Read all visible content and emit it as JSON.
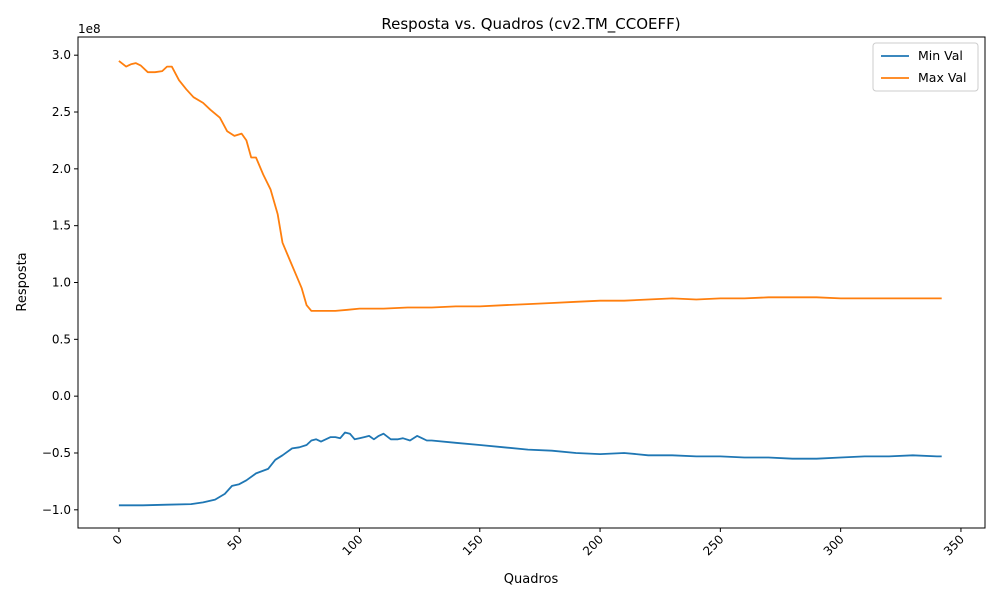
{
  "chart_data": {
    "type": "line",
    "title": "Resposta vs. Quadros (cv2.TM_CCOEFF)",
    "xlabel": "Quadros",
    "ylabel": "Resposta",
    "y_offset_label": "1e8",
    "xlim": [
      -17,
      360
    ],
    "ylim": [
      -1.16,
      3.16
    ],
    "y_scale_factor": 100000000,
    "xticks": [
      0,
      50,
      100,
      150,
      200,
      250,
      300,
      350
    ],
    "xtick_rotation": 45,
    "yticks": [
      -1.0,
      -0.5,
      0.0,
      0.5,
      1.0,
      1.5,
      2.0,
      2.5,
      3.0
    ],
    "ytick_labels": [
      "−1.0",
      "−0.5",
      "0.0",
      "0.5",
      "1.0",
      "1.5",
      "2.0",
      "2.5",
      "3.0"
    ],
    "grid": false,
    "legend_position": "top-right",
    "series": [
      {
        "name": "Min Val",
        "color": "#1f77b4",
        "points": [
          [
            0,
            -0.96
          ],
          [
            10,
            -0.96
          ],
          [
            20,
            -0.955
          ],
          [
            30,
            -0.95
          ],
          [
            35,
            -0.935
          ],
          [
            40,
            -0.91
          ],
          [
            44,
            -0.86
          ],
          [
            47,
            -0.79
          ],
          [
            50,
            -0.775
          ],
          [
            53,
            -0.74
          ],
          [
            57,
            -0.68
          ],
          [
            62,
            -0.64
          ],
          [
            65,
            -0.56
          ],
          [
            68,
            -0.52
          ],
          [
            72,
            -0.46
          ],
          [
            75,
            -0.45
          ],
          [
            78,
            -0.43
          ],
          [
            80,
            -0.39
          ],
          [
            82,
            -0.38
          ],
          [
            84,
            -0.4
          ],
          [
            86,
            -0.38
          ],
          [
            88,
            -0.36
          ],
          [
            90,
            -0.36
          ],
          [
            92,
            -0.37
          ],
          [
            94,
            -0.32
          ],
          [
            96,
            -0.33
          ],
          [
            98,
            -0.38
          ],
          [
            100,
            -0.37
          ],
          [
            102,
            -0.36
          ],
          [
            104,
            -0.35
          ],
          [
            106,
            -0.38
          ],
          [
            108,
            -0.35
          ],
          [
            110,
            -0.33
          ],
          [
            113,
            -0.38
          ],
          [
            116,
            -0.38
          ],
          [
            118,
            -0.37
          ],
          [
            121,
            -0.39
          ],
          [
            124,
            -0.35
          ],
          [
            126,
            -0.37
          ],
          [
            128,
            -0.39
          ],
          [
            130,
            -0.39
          ],
          [
            140,
            -0.41
          ],
          [
            150,
            -0.43
          ],
          [
            160,
            -0.45
          ],
          [
            170,
            -0.47
          ],
          [
            180,
            -0.48
          ],
          [
            190,
            -0.5
          ],
          [
            200,
            -0.51
          ],
          [
            210,
            -0.5
          ],
          [
            215,
            -0.51
          ],
          [
            220,
            -0.52
          ],
          [
            230,
            -0.52
          ],
          [
            240,
            -0.53
          ],
          [
            250,
            -0.53
          ],
          [
            260,
            -0.54
          ],
          [
            270,
            -0.54
          ],
          [
            280,
            -0.55
          ],
          [
            290,
            -0.55
          ],
          [
            300,
            -0.54
          ],
          [
            310,
            -0.53
          ],
          [
            320,
            -0.53
          ],
          [
            330,
            -0.52
          ],
          [
            340,
            -0.53
          ],
          [
            342,
            -0.53
          ]
        ]
      },
      {
        "name": "Max Val",
        "color": "#ff7f0e",
        "points": [
          [
            0,
            2.95
          ],
          [
            3,
            2.9
          ],
          [
            5,
            2.92
          ],
          [
            7,
            2.93
          ],
          [
            9,
            2.91
          ],
          [
            12,
            2.85
          ],
          [
            15,
            2.85
          ],
          [
            18,
            2.86
          ],
          [
            20,
            2.9
          ],
          [
            22,
            2.9
          ],
          [
            25,
            2.78
          ],
          [
            28,
            2.7
          ],
          [
            31,
            2.63
          ],
          [
            35,
            2.58
          ],
          [
            38,
            2.52
          ],
          [
            42,
            2.45
          ],
          [
            45,
            2.33
          ],
          [
            48,
            2.29
          ],
          [
            51,
            2.31
          ],
          [
            53,
            2.25
          ],
          [
            55,
            2.1
          ],
          [
            57,
            2.1
          ],
          [
            60,
            1.95
          ],
          [
            63,
            1.82
          ],
          [
            66,
            1.6
          ],
          [
            68,
            1.35
          ],
          [
            70,
            1.25
          ],
          [
            72,
            1.15
          ],
          [
            74,
            1.05
          ],
          [
            76,
            0.95
          ],
          [
            78,
            0.8
          ],
          [
            80,
            0.75
          ],
          [
            85,
            0.75
          ],
          [
            90,
            0.75
          ],
          [
            95,
            0.76
          ],
          [
            100,
            0.77
          ],
          [
            110,
            0.77
          ],
          [
            120,
            0.78
          ],
          [
            130,
            0.78
          ],
          [
            140,
            0.79
          ],
          [
            150,
            0.79
          ],
          [
            160,
            0.8
          ],
          [
            170,
            0.81
          ],
          [
            180,
            0.82
          ],
          [
            190,
            0.83
          ],
          [
            200,
            0.84
          ],
          [
            210,
            0.84
          ],
          [
            220,
            0.85
          ],
          [
            230,
            0.86
          ],
          [
            240,
            0.85
          ],
          [
            250,
            0.86
          ],
          [
            260,
            0.86
          ],
          [
            270,
            0.87
          ],
          [
            280,
            0.87
          ],
          [
            290,
            0.87
          ],
          [
            300,
            0.86
          ],
          [
            310,
            0.86
          ],
          [
            320,
            0.86
          ],
          [
            330,
            0.86
          ],
          [
            342,
            0.86
          ]
        ]
      }
    ]
  }
}
